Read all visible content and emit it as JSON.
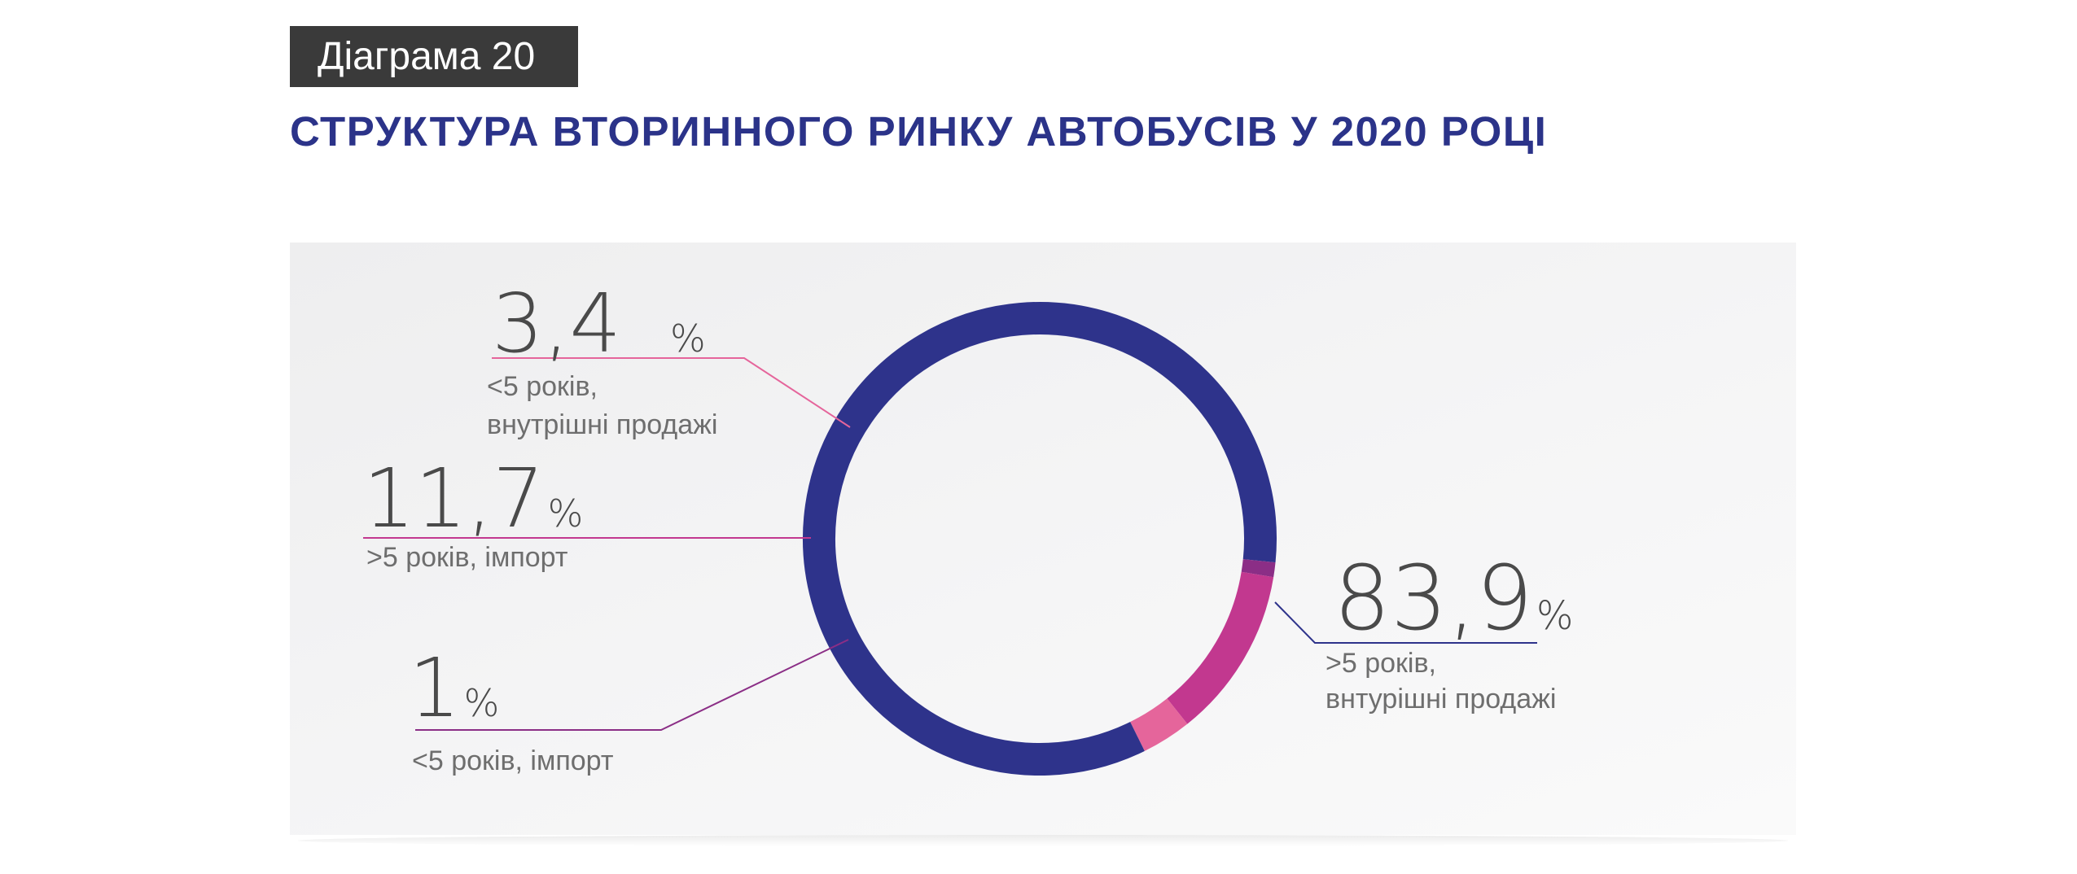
{
  "header": {
    "tag": "Діаграма 20",
    "title": "СТРУКТУРА ВТОРИННОГО РИНКУ АВТОБУСІВ У 2020 РОЦІ"
  },
  "chart_data": {
    "type": "pie",
    "title": "СТРУКТУРА ВТОРИННОГО РИНКУ АВТОБУСІВ У 2020 РОЦІ",
    "slices": [
      {
        "value": 83.9,
        "value_label": "83,9",
        "unit": "%",
        "label_lines": [
          ">5 років,",
          "внтурішні продажі"
        ],
        "color": "#2e338b"
      },
      {
        "value": 1,
        "value_label": "1",
        "unit": "%",
        "label_lines": [
          "<5 років, імпорт"
        ],
        "color": "#8b2e86"
      },
      {
        "value": 11.7,
        "value_label": "11,7",
        "unit": "%",
        "label_lines": [
          ">5 років, імпорт"
        ],
        "color": "#c2388f"
      },
      {
        "value": 3.4,
        "value_label": "3,4",
        "unit": "%",
        "label_lines": [
          "<5 років,",
          "внутрішні продажі"
        ],
        "color": "#e5659b"
      }
    ]
  }
}
